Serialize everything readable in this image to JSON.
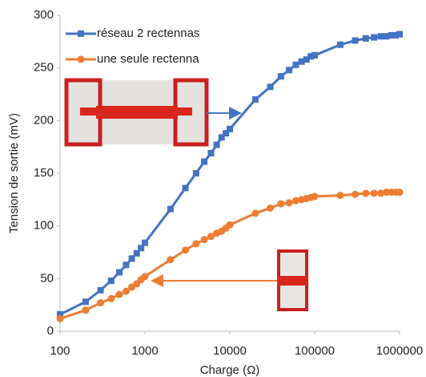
{
  "chart_data": {
    "type": "line",
    "xlabel": "Charge (Ω)",
    "ylabel": "Tension de sortie (mV)",
    "x": [
      100,
      200,
      300,
      400,
      500,
      600,
      700,
      800,
      900,
      1000,
      2000,
      3000,
      4000,
      5000,
      6000,
      7000,
      8000,
      9000,
      10000,
      20000,
      30000,
      40000,
      50000,
      60000,
      70000,
      80000,
      90000,
      100000,
      200000,
      300000,
      400000,
      500000,
      600000,
      700000,
      800000,
      900000,
      1000000
    ],
    "series": [
      {
        "name": "réseau 2 rectennas",
        "color": "#4472c4",
        "marker": "square",
        "values": [
          16,
          28,
          39,
          48,
          56,
          63,
          69,
          74,
          79,
          84,
          116,
          136,
          150,
          161,
          169,
          177,
          184,
          188,
          192,
          220,
          232,
          242,
          248,
          253,
          256,
          258,
          261,
          262,
          272,
          276,
          278,
          279,
          280,
          280,
          281,
          281,
          282
        ]
      },
      {
        "name": "une seule rectenna",
        "color": "#ed7d31",
        "marker": "circle",
        "values": [
          12,
          20,
          27,
          31,
          35,
          38,
          42,
          45,
          49,
          52,
          68,
          77,
          83,
          87,
          90,
          93,
          95,
          98,
          101,
          112,
          117,
          121,
          122,
          124,
          125,
          126,
          127,
          128,
          129,
          130,
          131,
          131,
          131,
          132,
          132,
          132,
          132
        ]
      }
    ],
    "xscale": "log",
    "xlim": [
      100,
      1000000
    ],
    "xticks": [
      100,
      1000,
      10000,
      100000,
      1000000
    ],
    "ylim": [
      0,
      300
    ],
    "yticks": [
      0,
      50,
      100,
      150,
      200,
      250,
      300
    ],
    "grid": false,
    "legend": "upper left"
  }
}
